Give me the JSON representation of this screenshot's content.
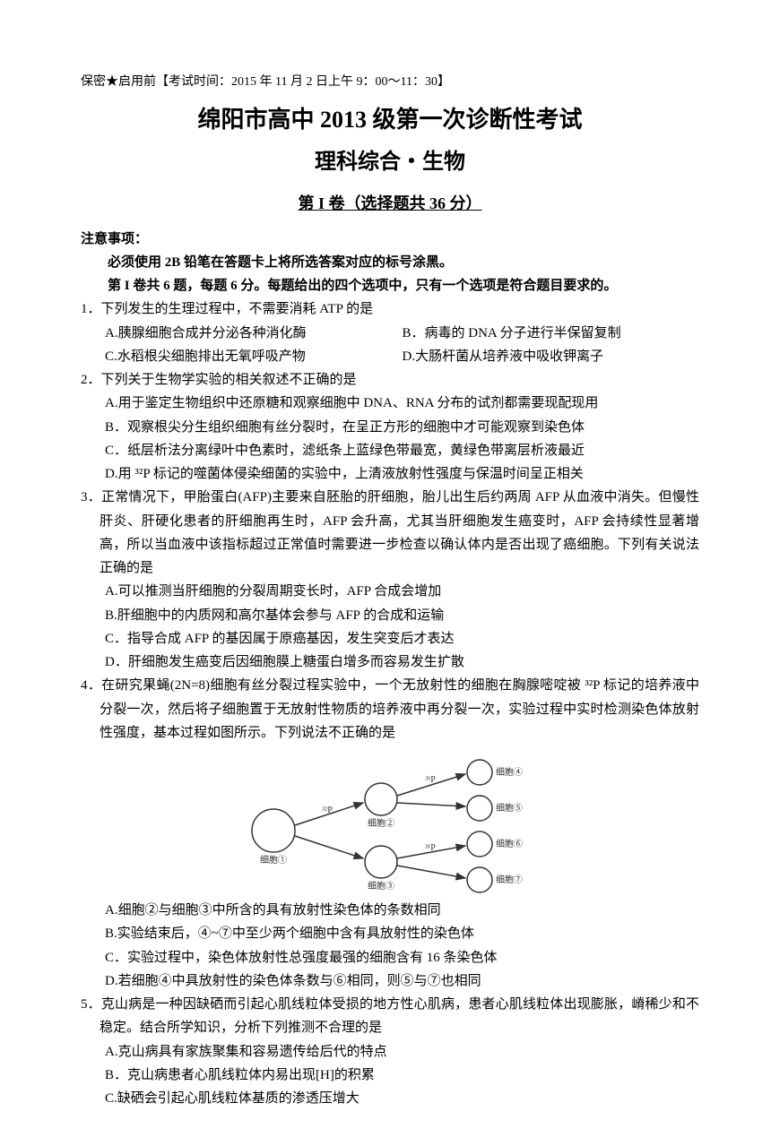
{
  "header": {
    "line": "保密★启用前【考试时间：2015 年 11 月 2 日上午 9：00～11：30】"
  },
  "titles": {
    "main": "绵阳市高中 2013 级第一次诊断性考试",
    "sub": "理科综合・生物",
    "section": "第 I 卷（选择题共 36 分）"
  },
  "notice": {
    "label": "注意事项：",
    "line1": "必须使用 2B 铅笔在答题卡上将所选答案对应的标号涂黑。",
    "line2": "第 I 卷共 6 题，每题 6 分。每题给出的四个选项中，只有一个选项是符合题目要求的。"
  },
  "q1": {
    "stem": "1．下列发生的生理过程中，不需要消耗 ATP 的是",
    "a": "A.胰腺细胞合成并分泌各种消化酶",
    "b": "B．病毒的 DNA 分子进行半保留复制",
    "c": "C.水稻根尖细胞排出无氧呼吸产物",
    "d": "D.大肠杆菌从培养液中吸收钾离子"
  },
  "q2": {
    "stem": "2．下列关于生物学实验的相关叙述不正确的是",
    "a": "A.用于鉴定生物组织中还原糖和观察细胞中 DNA、RNA 分布的试剂都需要现配现用",
    "b": "B．观察根尖分生组织细胞有丝分裂时，在呈正方形的细胞中才可能观察到染色体",
    "c": "C．纸层析法分离绿叶中色素时，滤纸条上蓝绿色带最宽，黄绿色带离层析液最近",
    "d": "D.用 ³²P 标记的噬菌体侵染细菌的实验中，上清液放射性强度与保温时间呈正相关"
  },
  "q3": {
    "stem": "3．正常情况下，甲胎蛋白(AFP)主要来自胚胎的肝细胞，胎儿出生后约两周 AFP 从血液中消失。但慢性肝炎、肝硬化患者的肝细胞再生时，AFP 会升高，尤其当肝细胞发生癌变时，AFP 会持续性显著增高，所以当血液中该指标超过正常值时需要进一步检查以确认体内是否出现了癌细胞。下列有关说法正确的是",
    "a": "A.可以推测当肝细胞的分裂周期变长时，AFP 合成会增加",
    "b": "B.肝细胞中的内质网和高尔基体会参与 AFP 的合成和运输",
    "c": "C．指导合成 AFP 的基因属于原癌基因，发生突变后才表达",
    "d": "D．肝细胞发生癌变后因细胞膜上糖蛋白增多而容易发生扩散"
  },
  "q4": {
    "stem": "4．在研究果蝇(2N=8)细胞有丝分裂过程实验中，一个无放射性的细胞在胸腺嘧啶被 ³²P 标记的培养液中分裂一次，然后将子细胞置于无放射性物质的培养液中再分裂一次，实验过程中实时检测染色体放射性强度，基本过程如图所示。下列说法不正确的是",
    "a": "A.细胞②与细胞③中所含的具有放射性染色体的条数相同",
    "b": "B.实验结束后，④~⑦中至少两个细胞中含有具放射性的染色体",
    "c": "C．实验过程中，染色体放射性总强度最强的细胞含有 16 条染色体",
    "d": "D.若细胞④中具放射性的染色体条数与⑥相同，则⑤与⑦也相同"
  },
  "q5": {
    "stem": "5．克山病是一种因缺硒而引起心肌线粒体受损的地方性心肌病，患者心肌线粒体出现膨胀，嵴稀少和不稳定。结合所学知识，分析下列推测不合理的是",
    "a": "A.克山病具有家族聚集和容易遗传给后代的特点",
    "b": "B．克山病患者心肌线粒体内易出现[H]的积累",
    "c": "C.缺硒会引起心肌线粒体基质的渗透压增大"
  },
  "diagram": {
    "nodes": {
      "n1": "细胞①",
      "n2": "细胞②",
      "n3": "细胞③",
      "n4": "细胞④",
      "n5": "细胞⑤",
      "n6": "细胞⑥",
      "n7": "细胞⑦"
    },
    "edges": {
      "e1": "³²P",
      "e2": "³¹P",
      "e3": "³¹P"
    },
    "colors": {
      "stroke": "#333333",
      "fill": "#ffffff",
      "text": "#333333"
    },
    "radii": {
      "large": 24,
      "mid": 18,
      "small": 14
    },
    "font": {
      "node": 10,
      "edge": 10
    }
  }
}
